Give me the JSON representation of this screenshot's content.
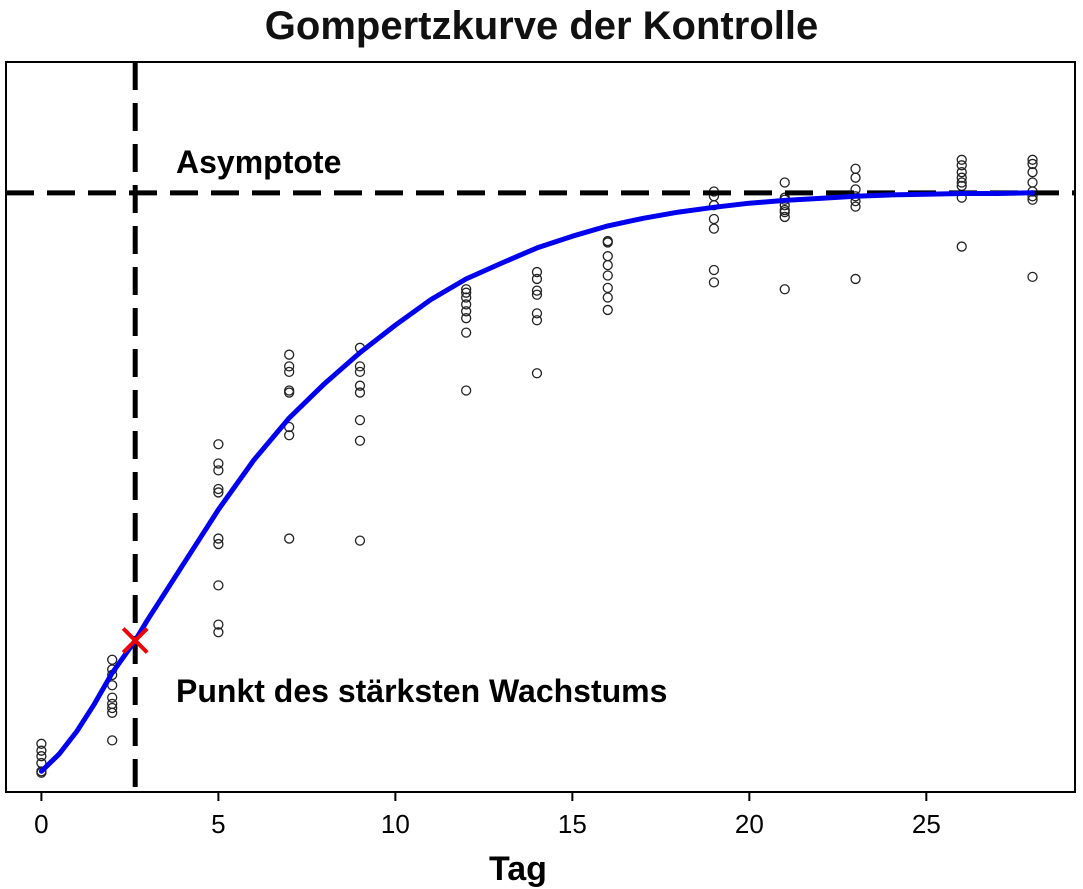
{
  "chart_data": {
    "type": "scatter",
    "title": "Gompertzkurve der Kontrolle",
    "xlabel": "Tag",
    "ylabel": "",
    "xlim": [
      -1,
      29.2
    ],
    "ylim": [
      -0.3,
      10.3
    ],
    "x_ticks": [
      0,
      5,
      10,
      15,
      20,
      25
    ],
    "grid": false,
    "annotations": {
      "asymptote": "Asymptote",
      "inflection": "Punkt des stärksten Wachstums"
    },
    "asymptote_y": 8.4,
    "inflection_point": {
      "x": 2.65,
      "y": 1.9
    },
    "series": [
      {
        "type": "scatter",
        "points": [
          [
            0,
            0.4
          ],
          [
            0,
            0.3
          ],
          [
            0,
            0.22
          ],
          [
            0,
            0.12
          ],
          [
            0,
            0.0
          ],
          [
            0,
            -0.02
          ],
          [
            2,
            1.62
          ],
          [
            2,
            1.48
          ],
          [
            2,
            1.4
          ],
          [
            2,
            1.25
          ],
          [
            2,
            1.07
          ],
          [
            2,
            0.98
          ],
          [
            2,
            0.92
          ],
          [
            2,
            0.85
          ],
          [
            2,
            0.45
          ],
          [
            5,
            4.75
          ],
          [
            5,
            4.47
          ],
          [
            5,
            4.37
          ],
          [
            5,
            4.1
          ],
          [
            5,
            4.05
          ],
          [
            5,
            3.38
          ],
          [
            5,
            3.3
          ],
          [
            5,
            2.7
          ],
          [
            5,
            2.13
          ],
          [
            5,
            2.02
          ],
          [
            7,
            6.05
          ],
          [
            7,
            5.88
          ],
          [
            7,
            5.8
          ],
          [
            7,
            5.53
          ],
          [
            7,
            5.5
          ],
          [
            7,
            5.0
          ],
          [
            7,
            4.88
          ],
          [
            7,
            3.38
          ],
          [
            9,
            6.15
          ],
          [
            9,
            5.88
          ],
          [
            9,
            5.8
          ],
          [
            9,
            5.6
          ],
          [
            9,
            5.5
          ],
          [
            9,
            5.1
          ],
          [
            9,
            4.8
          ],
          [
            9,
            3.35
          ],
          [
            12,
            7.0
          ],
          [
            12,
            6.95
          ],
          [
            12,
            6.88
          ],
          [
            12,
            6.78
          ],
          [
            12,
            6.68
          ],
          [
            12,
            6.58
          ],
          [
            12,
            6.37
          ],
          [
            12,
            5.53
          ],
          [
            14,
            7.25
          ],
          [
            14,
            7.15
          ],
          [
            14,
            6.98
          ],
          [
            14,
            6.92
          ],
          [
            14,
            6.65
          ],
          [
            14,
            6.55
          ],
          [
            14,
            5.78
          ],
          [
            16,
            7.7
          ],
          [
            16,
            7.68
          ],
          [
            16,
            7.48
          ],
          [
            16,
            7.35
          ],
          [
            16,
            7.2
          ],
          [
            16,
            7.02
          ],
          [
            16,
            6.88
          ],
          [
            16,
            6.7
          ],
          [
            19,
            8.42
          ],
          [
            19,
            8.35
          ],
          [
            19,
            8.22
          ],
          [
            19,
            8.02
          ],
          [
            19,
            7.88
          ],
          [
            19,
            7.28
          ],
          [
            19,
            7.1
          ],
          [
            21,
            8.55
          ],
          [
            21,
            8.33
          ],
          [
            21,
            8.3
          ],
          [
            21,
            8.22
          ],
          [
            21,
            8.15
          ],
          [
            21,
            8.12
          ],
          [
            21,
            8.05
          ],
          [
            21,
            7.0
          ],
          [
            23,
            8.75
          ],
          [
            23,
            8.62
          ],
          [
            23,
            8.45
          ],
          [
            23,
            8.35
          ],
          [
            23,
            8.28
          ],
          [
            23,
            8.2
          ],
          [
            23,
            7.15
          ],
          [
            26,
            8.88
          ],
          [
            26,
            8.8
          ],
          [
            26,
            8.7
          ],
          [
            26,
            8.62
          ],
          [
            26,
            8.55
          ],
          [
            26,
            8.5
          ],
          [
            26,
            8.33
          ],
          [
            26,
            7.62
          ],
          [
            28,
            8.88
          ],
          [
            28,
            8.82
          ],
          [
            28,
            8.7
          ],
          [
            28,
            8.55
          ],
          [
            28,
            8.42
          ],
          [
            28,
            8.35
          ],
          [
            28,
            8.3
          ],
          [
            28,
            7.18
          ]
        ]
      },
      {
        "type": "line",
        "name": "",
        "x": [
          0,
          0.5,
          1,
          1.5,
          2,
          2.65,
          3,
          3.5,
          4,
          4.5,
          5,
          6,
          7,
          8,
          9,
          10,
          11,
          12,
          13,
          14,
          15,
          16,
          17,
          18,
          19,
          20,
          21,
          22,
          23,
          24,
          25,
          26,
          27,
          28
        ],
        "y": [
          0.0,
          0.25,
          0.58,
          0.98,
          1.43,
          1.9,
          2.2,
          2.6,
          3.0,
          3.4,
          3.8,
          4.52,
          5.13,
          5.63,
          6.08,
          6.48,
          6.85,
          7.15,
          7.38,
          7.6,
          7.77,
          7.92,
          8.03,
          8.12,
          8.19,
          8.25,
          8.29,
          8.32,
          8.35,
          8.37,
          8.38,
          8.39,
          8.39,
          8.4
        ]
      }
    ],
    "colors": {
      "curve": "#0000ee",
      "points": "#222222",
      "reference_lines": "#000000",
      "inflection_marker": "#ee0000"
    }
  }
}
